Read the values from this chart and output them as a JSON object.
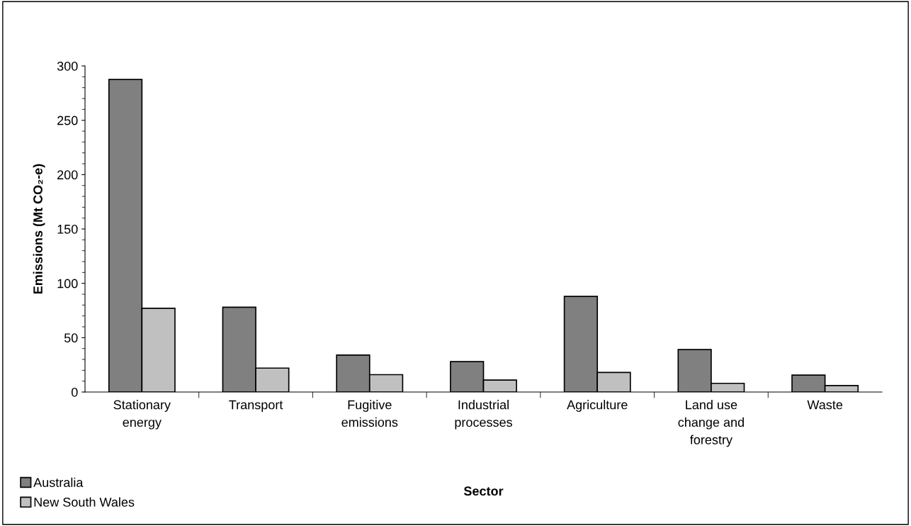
{
  "chart_data": {
    "type": "bar",
    "xlabel": "Sector",
    "ylabel": "Emissions (Mt CO₂-e)",
    "categories": [
      "Stationary\nenergy",
      "Transport",
      "Fugitive\nemissions",
      "Industrial\nprocesses",
      "Agriculture",
      "Land use\nchange and\nforestry",
      "Waste"
    ],
    "series": [
      {
        "name": "Australia",
        "color": "#808080",
        "values": [
          287.5,
          78,
          34,
          28,
          88,
          39,
          15.6
        ]
      },
      {
        "name": "New South Wales",
        "color": "#c0c0c0",
        "values": [
          77,
          22,
          16,
          11,
          18,
          8,
          6
        ]
      }
    ],
    "ylim": [
      0,
      300
    ],
    "yticks": [
      0,
      50,
      100,
      150,
      200,
      250,
      300
    ],
    "grid": false,
    "legend": "bottom left"
  }
}
